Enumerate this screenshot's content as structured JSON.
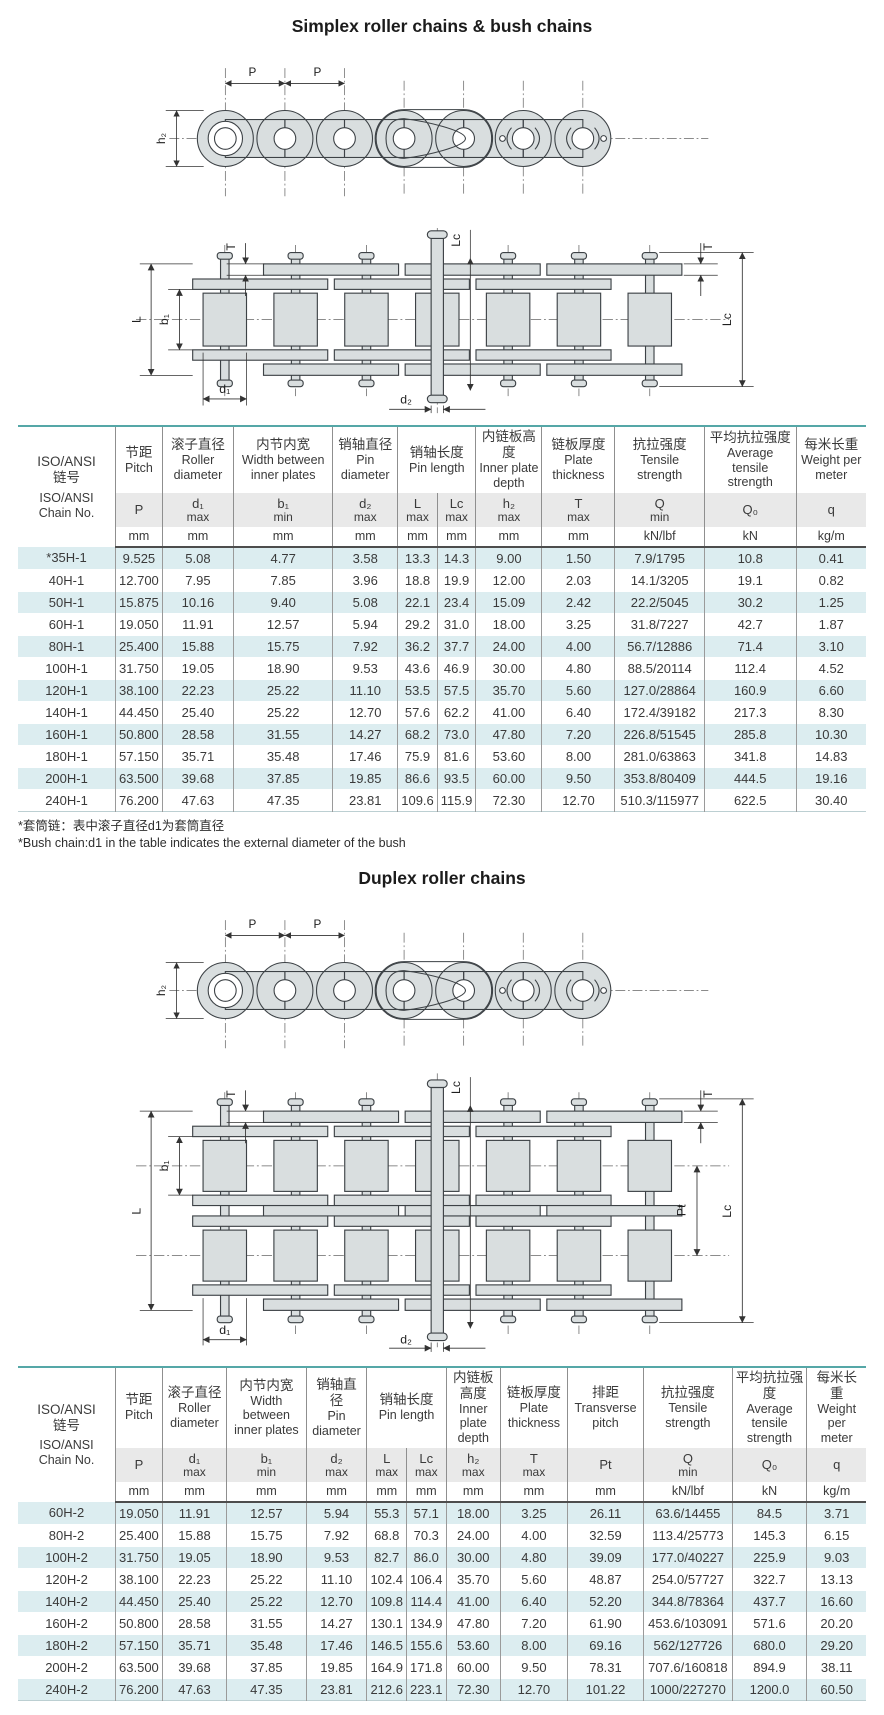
{
  "colors": {
    "table_top_border": "#55a7a7",
    "row_stripe": "#dcedf0",
    "subheader_bg": "#e9e9e9",
    "drawing_fill": "#d9dedf"
  },
  "titles": {
    "simplex": "Simplex roller chains & bush chains",
    "duplex": "Duplex roller chains"
  },
  "footnotes": {
    "zh": "*套筒链：表中滚子直径d1为套筒直径",
    "en": "*Bush chain:d1 in the table indicates the external diameter of the bush"
  },
  "dim_labels": {
    "P": "P",
    "h2": "h₂",
    "T": "T",
    "L": "L",
    "b1": "b₁",
    "Lc": "Lc",
    "d1": "d₁",
    "d2": "d₂",
    "Pt": "Pt"
  },
  "table1": {
    "corner": {
      "zh1": "ISO/ANSI",
      "zh2": "链号",
      "en1": "ISO/ANSI",
      "en2": "Chain No."
    },
    "columns": [
      {
        "zh": "节距",
        "en": "Pitch",
        "subs": [
          {
            "sym": "P",
            "cons": "",
            "unit": "mm"
          }
        ]
      },
      {
        "zh": "滚子直径",
        "en": "Roller diameter",
        "subs": [
          {
            "sym": "d₁",
            "cons": "max",
            "unit": "mm"
          }
        ]
      },
      {
        "zh": "内节内宽",
        "en": "Width between inner plates",
        "subs": [
          {
            "sym": "b₁",
            "cons": "min",
            "unit": "mm"
          }
        ]
      },
      {
        "zh": "销轴直径",
        "en": "Pin diameter",
        "subs": [
          {
            "sym": "d₂",
            "cons": "max",
            "unit": "mm"
          }
        ]
      },
      {
        "zh": "销轴长度",
        "en": "Pin length",
        "subs": [
          {
            "sym": "L",
            "cons": "max",
            "unit": "mm"
          },
          {
            "sym": "Lc",
            "cons": "max",
            "unit": "mm"
          }
        ]
      },
      {
        "zh": "内链板高度",
        "en": "Inner plate depth",
        "subs": [
          {
            "sym": "h₂",
            "cons": "max",
            "unit": "mm"
          }
        ]
      },
      {
        "zh": "链板厚度",
        "en": "Plate thickness",
        "subs": [
          {
            "sym": "T",
            "cons": "max",
            "unit": "mm"
          }
        ]
      },
      {
        "zh": "抗拉强度",
        "en": "Tensile strength",
        "subs": [
          {
            "sym": "Q",
            "cons": "min",
            "unit": "kN/lbf"
          }
        ]
      },
      {
        "zh": "平均抗拉强度",
        "en": "Average tensile strength",
        "subs": [
          {
            "sym": "Q₀",
            "cons": "",
            "unit": "kN"
          }
        ]
      },
      {
        "zh": "每米长重",
        "en": "Weight per meter",
        "subs": [
          {
            "sym": "q",
            "cons": "",
            "unit": "kg/m"
          }
        ]
      }
    ],
    "rows": [
      [
        "*35H-1",
        "9.525",
        "5.08",
        "4.77",
        "3.58",
        "13.3",
        "14.3",
        "9.00",
        "1.50",
        "7.9/1795",
        "10.8",
        "0.41"
      ],
      [
        "40H-1",
        "12.700",
        "7.95",
        "7.85",
        "3.96",
        "18.8",
        "19.9",
        "12.00",
        "2.03",
        "14.1/3205",
        "19.1",
        "0.82"
      ],
      [
        "50H-1",
        "15.875",
        "10.16",
        "9.40",
        "5.08",
        "22.1",
        "23.4",
        "15.09",
        "2.42",
        "22.2/5045",
        "30.2",
        "1.25"
      ],
      [
        "60H-1",
        "19.050",
        "11.91",
        "12.57",
        "5.94",
        "29.2",
        "31.0",
        "18.00",
        "3.25",
        "31.8/7227",
        "42.7",
        "1.87"
      ],
      [
        "80H-1",
        "25.400",
        "15.88",
        "15.75",
        "7.92",
        "36.2",
        "37.7",
        "24.00",
        "4.00",
        "56.7/12886",
        "71.4",
        "3.10"
      ],
      [
        "100H-1",
        "31.750",
        "19.05",
        "18.90",
        "9.53",
        "43.6",
        "46.9",
        "30.00",
        "4.80",
        "88.5/20114",
        "112.4",
        "4.52"
      ],
      [
        "120H-1",
        "38.100",
        "22.23",
        "25.22",
        "11.10",
        "53.5",
        "57.5",
        "35.70",
        "5.60",
        "127.0/28864",
        "160.9",
        "6.60"
      ],
      [
        "140H-1",
        "44.450",
        "25.40",
        "25.22",
        "12.70",
        "57.6",
        "62.2",
        "41.00",
        "6.40",
        "172.4/39182",
        "217.3",
        "8.30"
      ],
      [
        "160H-1",
        "50.800",
        "28.58",
        "31.55",
        "14.27",
        "68.2",
        "73.0",
        "47.80",
        "7.20",
        "226.8/51545",
        "285.8",
        "10.30"
      ],
      [
        "180H-1",
        "57.150",
        "35.71",
        "35.48",
        "17.46",
        "75.9",
        "81.6",
        "53.60",
        "8.00",
        "281.0/63863",
        "341.8",
        "14.83"
      ],
      [
        "200H-1",
        "63.500",
        "39.68",
        "37.85",
        "19.85",
        "86.6",
        "93.5",
        "60.00",
        "9.50",
        "353.8/80409",
        "444.5",
        "19.16"
      ],
      [
        "240H-1",
        "76.200",
        "47.63",
        "47.35",
        "23.81",
        "109.6",
        "115.9",
        "72.30",
        "12.70",
        "510.3/115977",
        "622.5",
        "30.40"
      ]
    ]
  },
  "table2": {
    "corner": {
      "zh1": "ISO/ANSI",
      "zh2": "链号",
      "en1": "ISO/ANSI",
      "en2": "Chain No."
    },
    "columns": [
      {
        "zh": "节距",
        "en": "Pitch",
        "subs": [
          {
            "sym": "P",
            "cons": "",
            "unit": "mm"
          }
        ]
      },
      {
        "zh": "滚子直径",
        "en": "Roller diameter",
        "subs": [
          {
            "sym": "d₁",
            "cons": "max",
            "unit": "mm"
          }
        ]
      },
      {
        "zh": "内节内宽",
        "en": "Width between inner plates",
        "subs": [
          {
            "sym": "b₁",
            "cons": "min",
            "unit": "mm"
          }
        ]
      },
      {
        "zh": "销轴直径",
        "en": "Pin diameter",
        "subs": [
          {
            "sym": "d₂",
            "cons": "max",
            "unit": "mm"
          }
        ]
      },
      {
        "zh": "销轴长度",
        "en": "Pin length",
        "subs": [
          {
            "sym": "L",
            "cons": "max",
            "unit": "mm"
          },
          {
            "sym": "Lc",
            "cons": "max",
            "unit": "mm"
          }
        ]
      },
      {
        "zh": "内链板高度",
        "en": "Inner plate depth",
        "subs": [
          {
            "sym": "h₂",
            "cons": "max",
            "unit": "mm"
          }
        ]
      },
      {
        "zh": "链板厚度",
        "en": "Plate thickness",
        "subs": [
          {
            "sym": "T",
            "cons": "max",
            "unit": "mm"
          }
        ]
      },
      {
        "zh": "排距",
        "en": "Transverse pitch",
        "subs": [
          {
            "sym": "Pt",
            "cons": "",
            "unit": "mm"
          }
        ]
      },
      {
        "zh": "抗拉强度",
        "en": "Tensile strength",
        "subs": [
          {
            "sym": "Q",
            "cons": "min",
            "unit": "kN/lbf"
          }
        ]
      },
      {
        "zh": "平均抗拉强度",
        "en": "Average tensile strength",
        "subs": [
          {
            "sym": "Q₀",
            "cons": "",
            "unit": "kN"
          }
        ]
      },
      {
        "zh": "每米长重",
        "en": "Weight per meter",
        "subs": [
          {
            "sym": "q",
            "cons": "",
            "unit": "kg/m"
          }
        ]
      }
    ],
    "rows": [
      [
        "60H-2",
        "19.050",
        "11.91",
        "12.57",
        "5.94",
        "55.3",
        "57.1",
        "18.00",
        "3.25",
        "26.11",
        "63.6/14455",
        "84.5",
        "3.71"
      ],
      [
        "80H-2",
        "25.400",
        "15.88",
        "15.75",
        "7.92",
        "68.8",
        "70.3",
        "24.00",
        "4.00",
        "32.59",
        "113.4/25773",
        "145.3",
        "6.15"
      ],
      [
        "100H-2",
        "31.750",
        "19.05",
        "18.90",
        "9.53",
        "82.7",
        "86.0",
        "30.00",
        "4.80",
        "39.09",
        "177.0/40227",
        "225.9",
        "9.03"
      ],
      [
        "120H-2",
        "38.100",
        "22.23",
        "25.22",
        "11.10",
        "102.4",
        "106.4",
        "35.70",
        "5.60",
        "48.87",
        "254.0/57727",
        "322.7",
        "13.13"
      ],
      [
        "140H-2",
        "44.450",
        "25.40",
        "25.22",
        "12.70",
        "109.8",
        "114.4",
        "41.00",
        "6.40",
        "52.20",
        "344.8/78364",
        "437.7",
        "16.60"
      ],
      [
        "160H-2",
        "50.800",
        "28.58",
        "31.55",
        "14.27",
        "130.1",
        "134.9",
        "47.80",
        "7.20",
        "61.90",
        "453.6/103091",
        "571.6",
        "20.20"
      ],
      [
        "180H-2",
        "57.150",
        "35.71",
        "35.48",
        "17.46",
        "146.5",
        "155.6",
        "53.60",
        "8.00",
        "69.16",
        "562/127726",
        "680.0",
        "29.20"
      ],
      [
        "200H-2",
        "63.500",
        "39.68",
        "37.85",
        "19.85",
        "164.9",
        "171.8",
        "60.00",
        "9.50",
        "78.31",
        "707.6/160818",
        "894.9",
        "38.11"
      ],
      [
        "240H-2",
        "76.200",
        "47.63",
        "47.35",
        "23.81",
        "212.6",
        "223.1",
        "72.30",
        "12.70",
        "101.22",
        "1000/227270",
        "1200.0",
        "60.50"
      ]
    ]
  }
}
